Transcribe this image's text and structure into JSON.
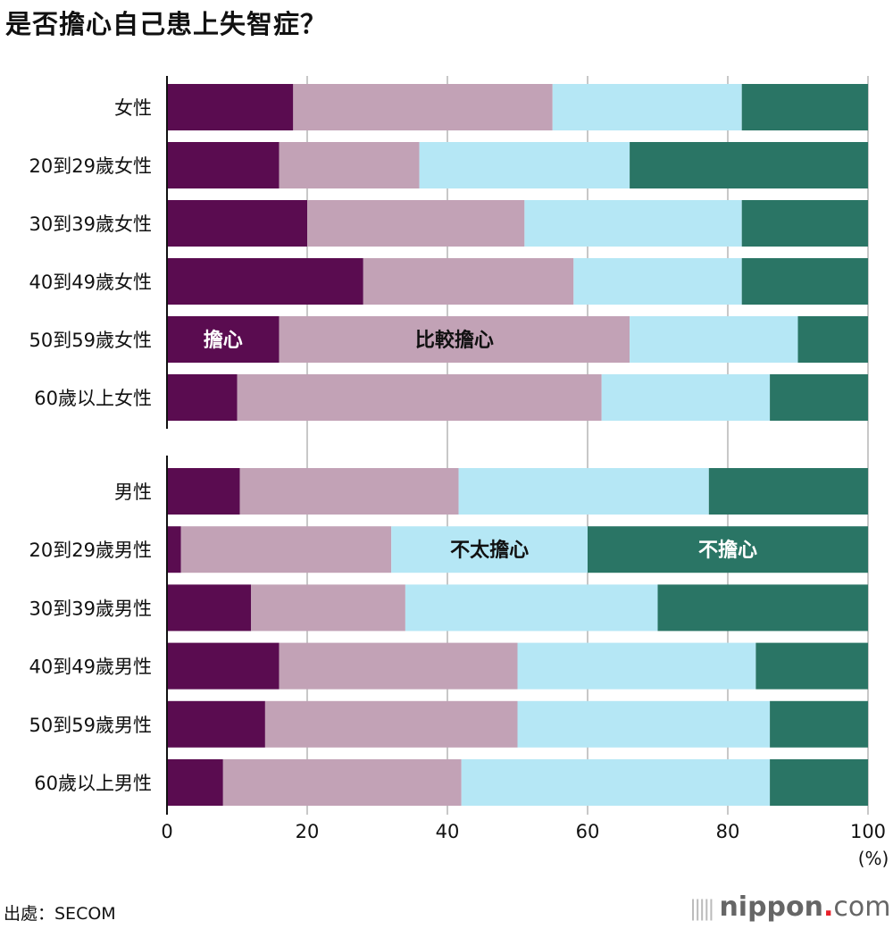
{
  "title": "是否擔心自己患上失智症？",
  "source": "出處：SECOM",
  "logo": {
    "text": "nippon",
    "dot": ".",
    "suffix": "com"
  },
  "chart_data": {
    "type": "bar",
    "orientation": "horizontal-stacked-100",
    "title": "是否擔心自己患上失智症？",
    "xlabel": "(%)",
    "xlim": [
      0,
      100
    ],
    "xticks": [
      "0",
      "20",
      "40",
      "60",
      "80",
      "100"
    ],
    "grid": true,
    "groups": [
      {
        "name": "female",
        "categories": [
          "女性",
          "20到29歲女性",
          "30到39歲女性",
          "40到49歲女性",
          "50到59歲女性",
          "60歲以上女性"
        ]
      },
      {
        "name": "male",
        "categories": [
          "男性",
          "20到29歲男性",
          "30到39歲男性",
          "40到49歲男性",
          "50到59歲男性",
          "60歲以上男性"
        ]
      }
    ],
    "categories": [
      "女性",
      "20到29歲女性",
      "30到39歲女性",
      "40到49歲女性",
      "50到59歲女性",
      "60歲以上女性",
      "男性",
      "20到29歲男性",
      "30到39歲男性",
      "40到49歲男性",
      "50到59歲男性",
      "60歲以上男性"
    ],
    "series": [
      {
        "name": "擔心",
        "color": "#5a0c50",
        "label_color": "#ffffff",
        "label_row": 4,
        "values": [
          18,
          16,
          20,
          28,
          16,
          10,
          10.4,
          2,
          12,
          16,
          14,
          8
        ]
      },
      {
        "name": "比較擔心",
        "color": "#c2a2b6",
        "label_color": "#111111",
        "label_row": 4,
        "values": [
          37,
          20,
          31,
          30,
          50,
          52,
          31.2,
          30,
          22,
          34,
          36,
          34
        ]
      },
      {
        "name": "不太擔心",
        "color": "#b5e7f5",
        "label_color": "#111111",
        "label_row": 7,
        "values": [
          27,
          30,
          31,
          24,
          24,
          24,
          35.7,
          28,
          36,
          34,
          36,
          44
        ]
      },
      {
        "name": "不擔心",
        "color": "#2a7565",
        "label_color": "#ffffff",
        "label_row": 7,
        "values": [
          18,
          34,
          18,
          18,
          10,
          14,
          22.7,
          40,
          30,
          16,
          14,
          14
        ]
      }
    ]
  }
}
